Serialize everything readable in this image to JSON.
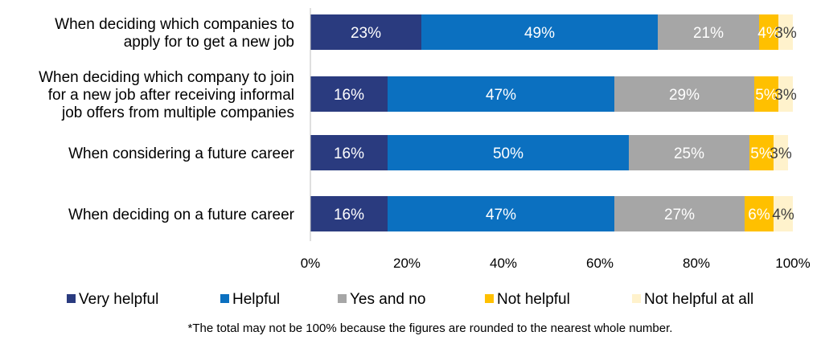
{
  "chart_data": {
    "type": "bar",
    "orientation": "horizontal",
    "stacked": "percent",
    "categories": [
      [
        "When deciding which companies to",
        "apply for to get a new job"
      ],
      [
        "When deciding which company to join",
        "for a new job after receiving informal",
        "job offers from multiple companies"
      ],
      [
        "When considering a future career"
      ],
      [
        "When deciding on a future career"
      ]
    ],
    "series": [
      {
        "name": "Very helpful",
        "color": "#2a3b7f",
        "label_color": "#ffffff",
        "values": [
          23,
          16,
          16,
          16
        ]
      },
      {
        "name": "Helpful",
        "color": "#0b70c0",
        "label_color": "#ffffff",
        "values": [
          49,
          47,
          50,
          47
        ]
      },
      {
        "name": "Yes and no",
        "color": "#a6a6a6",
        "label_color": "#ffffff",
        "values": [
          21,
          29,
          25,
          27
        ]
      },
      {
        "name": "Not helpful",
        "color": "#ffc000",
        "label_color": "#ffffff",
        "values": [
          4,
          5,
          5,
          6
        ]
      },
      {
        "name": "Not helpful at all",
        "color": "#fff2cc",
        "label_color": "#404040",
        "values": [
          3,
          3,
          3,
          4
        ]
      }
    ],
    "xlim": [
      0,
      100
    ],
    "xticks": [
      "0%",
      "20%",
      "40%",
      "60%",
      "80%",
      "100%"
    ],
    "grid": false,
    "legend_position": "bottom",
    "footnote": "*The total may not be 100% because the figures are rounded to the nearest whole number."
  }
}
